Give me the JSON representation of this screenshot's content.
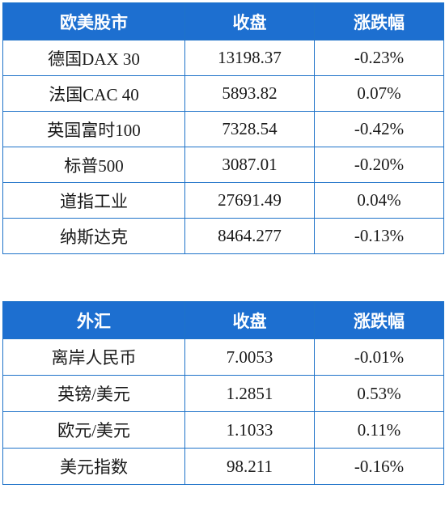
{
  "colors": {
    "header_bg": "#1d6fd0",
    "border": "#1f73c9",
    "negative": "#1aa33f",
    "positive": "#e0262b"
  },
  "stocks": {
    "headers": [
      "欧美股市",
      "收盘",
      "涨跌幅"
    ],
    "rows": [
      {
        "name": "德国DAX 30",
        "close": "13198.37",
        "change": "-0.23%",
        "dir": "neg"
      },
      {
        "name": "法国CAC 40",
        "close": "5893.82",
        "change": "0.07%",
        "dir": "pos"
      },
      {
        "name": "英国富时100",
        "close": "7328.54",
        "change": "-0.42%",
        "dir": "neg"
      },
      {
        "name": "标普500",
        "close": "3087.01",
        "change": "-0.20%",
        "dir": "neg"
      },
      {
        "name": "道指工业",
        "close": "27691.49",
        "change": "0.04%",
        "dir": "pos"
      },
      {
        "name": "纳斯达克",
        "close": "8464.277",
        "change": "-0.13%",
        "dir": "neg"
      }
    ]
  },
  "forex": {
    "headers": [
      "外汇",
      "收盘",
      "涨跌幅"
    ],
    "rows": [
      {
        "name": "离岸人民币",
        "close": "7.0053",
        "change": "-0.01%",
        "dir": "neg"
      },
      {
        "name": "英镑/美元",
        "close": "1.2851",
        "change": "0.53%",
        "dir": "pos"
      },
      {
        "name": "欧元/美元",
        "close": "1.1033",
        "change": "0.11%",
        "dir": "pos"
      },
      {
        "name": "美元指数",
        "close": "98.211",
        "change": "-0.16%",
        "dir": "neg"
      }
    ]
  }
}
